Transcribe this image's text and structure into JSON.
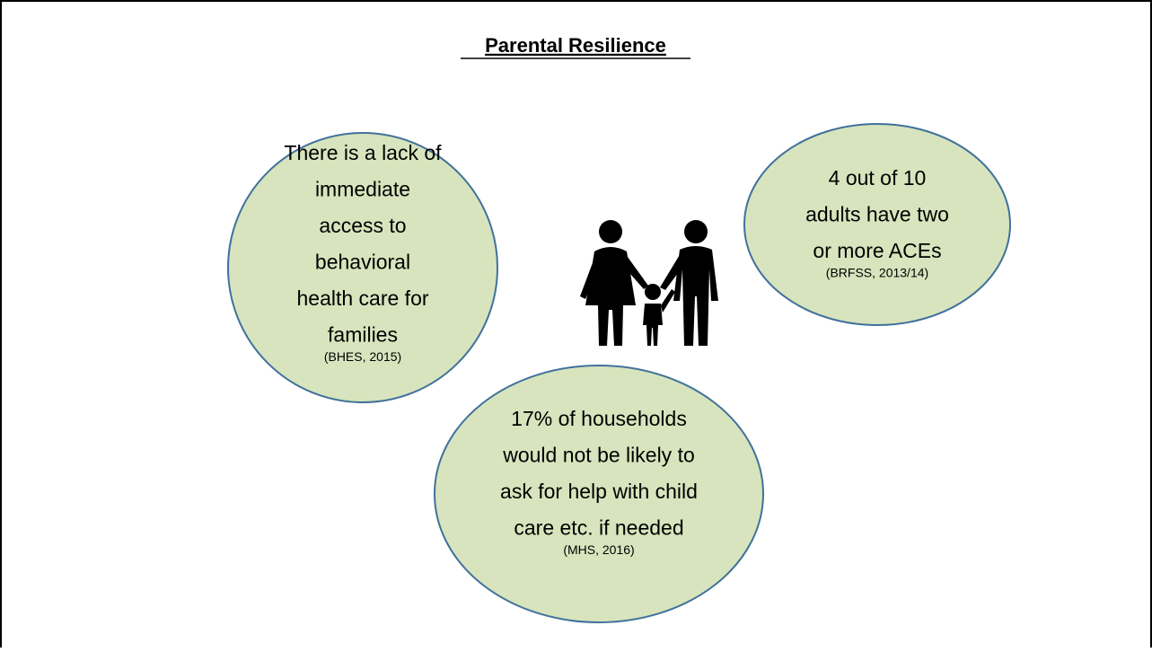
{
  "title": "Parental Resilience",
  "bubbles": [
    {
      "lines": [
        "There is a lack of",
        "immediate",
        "access to",
        "behavioral",
        "health care for",
        "families"
      ],
      "source": "(BHES, 2015)"
    },
    {
      "lines": [
        "4 out of 10",
        "adults have two",
        "or more ACEs"
      ],
      "source": "(BRFSS, 2013/14)"
    },
    {
      "lines": [
        "17% of households",
        "would not be likely to",
        "ask for help with child",
        "care etc. if needed"
      ],
      "source": "(MHS, 2016)"
    }
  ]
}
